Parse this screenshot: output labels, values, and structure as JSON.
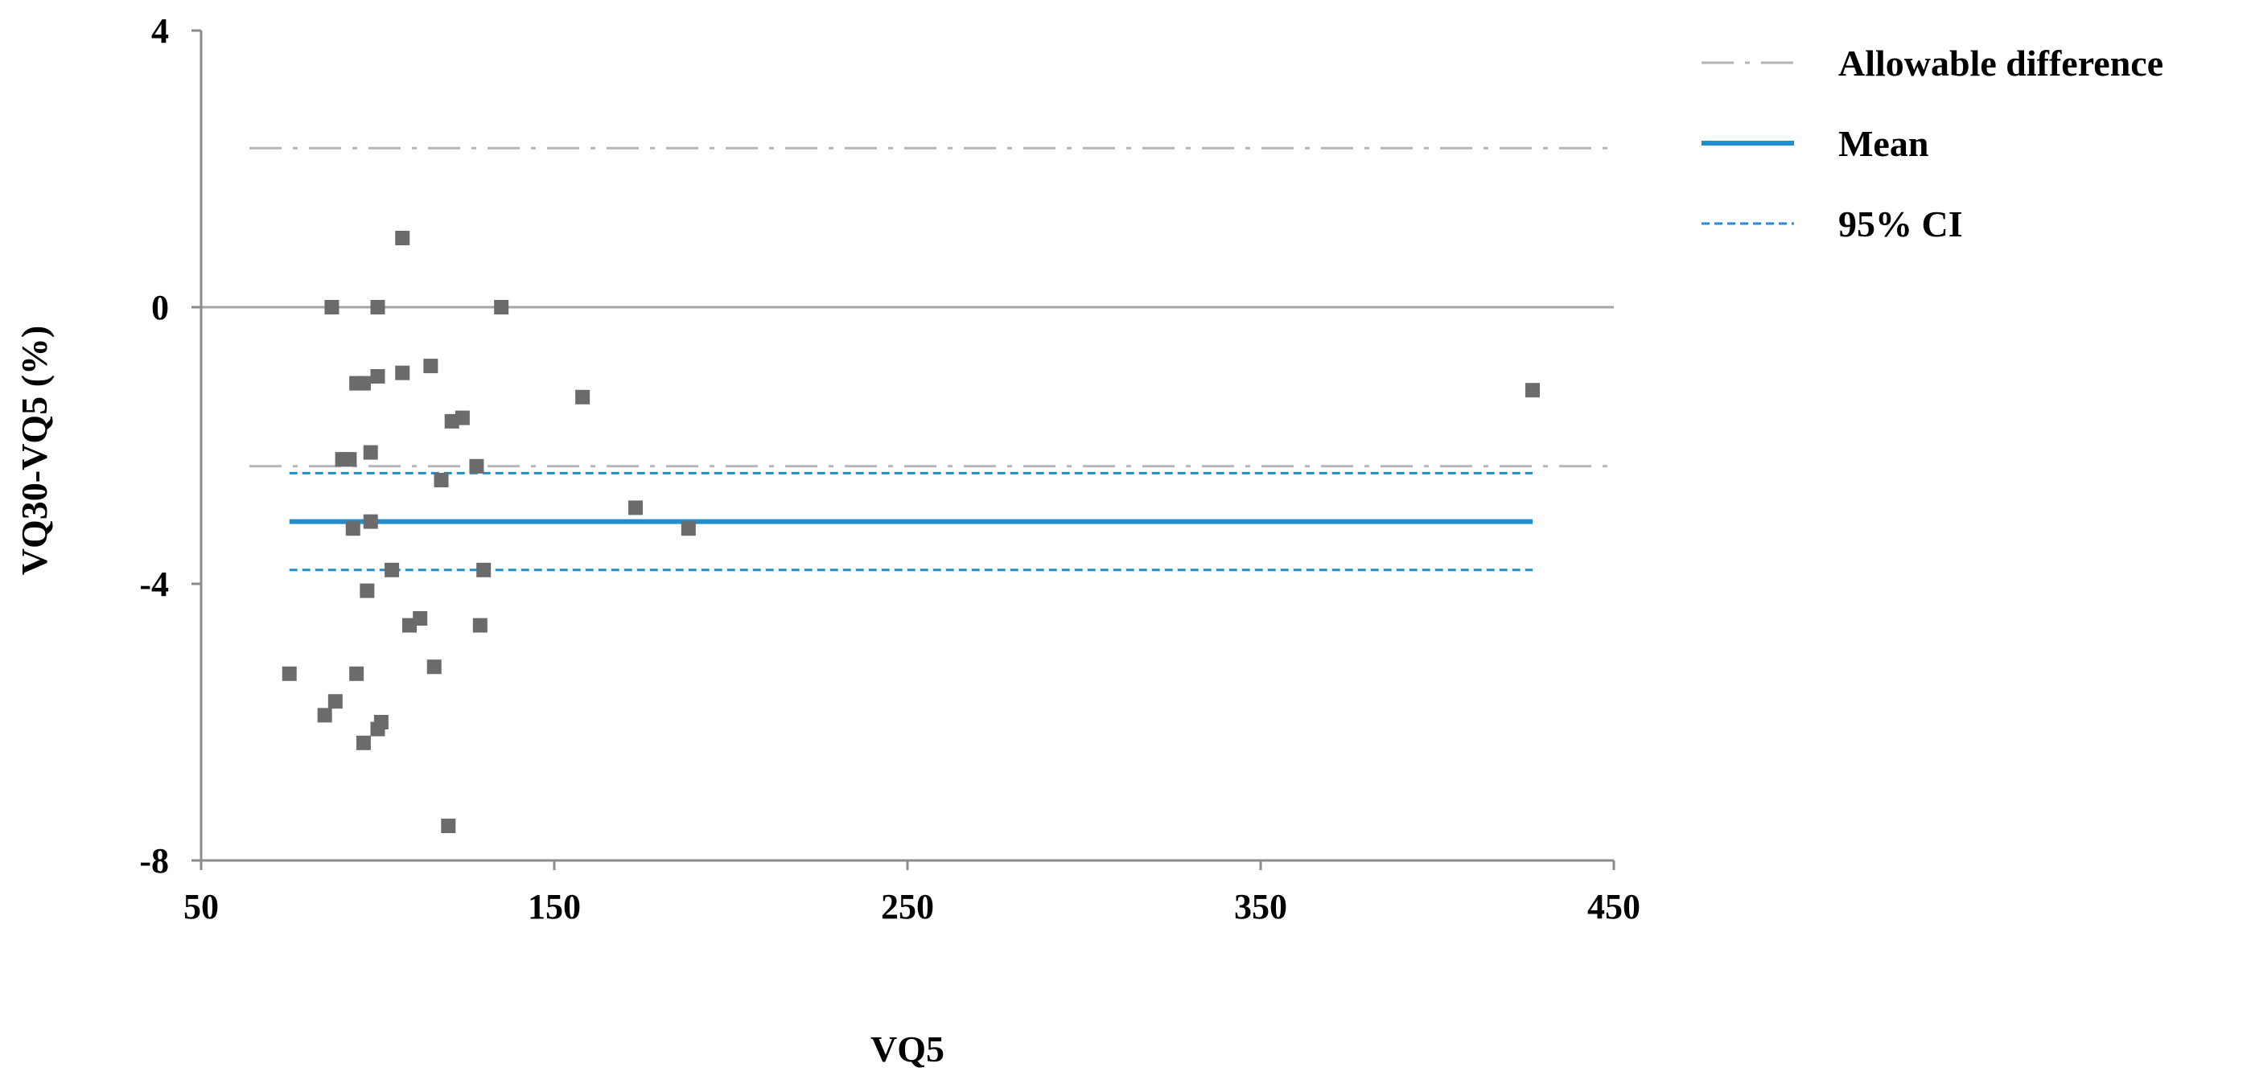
{
  "chart_data": {
    "type": "scatter",
    "title": "",
    "xlabel": "VQ5",
    "ylabel": "VQ30-VQ5 (%)",
    "xlim": [
      50,
      450
    ],
    "ylim": [
      -8,
      4
    ],
    "xticks": [
      50,
      150,
      250,
      350,
      450
    ],
    "yticks": [
      -8,
      -4,
      0,
      4
    ],
    "grid": false,
    "legend_position": "top-right",
    "colors": {
      "points": "#6b6b6b",
      "mean": "#1f8ecf",
      "ci": "#1f8ecf",
      "allowable": "#b5b5b5",
      "zero_line": "#a6a6a6",
      "axis": "#8c8c8c"
    },
    "reference_lines": [
      {
        "name": "Allowable difference",
        "style": "dash-dot",
        "y": 2.3
      },
      {
        "name": "Allowable difference",
        "style": "dash-dot",
        "y": -2.3
      },
      {
        "name": "Mean",
        "style": "solid",
        "y": -3.1,
        "x_range": [
          75,
          427
        ]
      },
      {
        "name": "95% CI",
        "style": "dashed",
        "y": -2.4,
        "x_range": [
          75,
          427
        ]
      },
      {
        "name": "95% CI",
        "style": "dashed",
        "y": -3.8,
        "x_range": [
          75,
          427
        ]
      }
    ],
    "legend": [
      {
        "label": "Allowable difference",
        "style": "dash-dot"
      },
      {
        "label": "Mean",
        "style": "solid"
      },
      {
        "label": "95% CI",
        "style": "dashed"
      }
    ],
    "series": [
      {
        "points": [
          [
            75,
            -5.3
          ],
          [
            85,
            -5.9
          ],
          [
            87,
            0.0
          ],
          [
            88,
            -5.7
          ],
          [
            90,
            -2.2
          ],
          [
            91,
            -2.2
          ],
          [
            92,
            -2.2
          ],
          [
            93,
            -3.2
          ],
          [
            94,
            -5.3
          ],
          [
            94,
            -1.1
          ],
          [
            96,
            -1.1
          ],
          [
            96,
            -6.3
          ],
          [
            97,
            -4.1
          ],
          [
            98,
            -2.1
          ],
          [
            98,
            -3.1
          ],
          [
            100,
            -1.0
          ],
          [
            100,
            0.0
          ],
          [
            100,
            -6.1
          ],
          [
            101,
            -6.0
          ],
          [
            104,
            -3.8
          ],
          [
            107,
            1.0
          ],
          [
            107,
            -0.95
          ],
          [
            109,
            -4.6
          ],
          [
            112,
            -4.5
          ],
          [
            115,
            -0.85
          ],
          [
            116,
            -5.2
          ],
          [
            118,
            -2.5
          ],
          [
            120,
            -7.5
          ],
          [
            121,
            -1.65
          ],
          [
            124,
            -1.6
          ],
          [
            128,
            -2.3
          ],
          [
            129,
            -4.6
          ],
          [
            130,
            -3.8
          ],
          [
            135,
            0.0
          ],
          [
            158,
            -1.3
          ],
          [
            173,
            -2.9
          ],
          [
            188,
            -3.2
          ],
          [
            427,
            -1.2
          ]
        ]
      }
    ]
  }
}
